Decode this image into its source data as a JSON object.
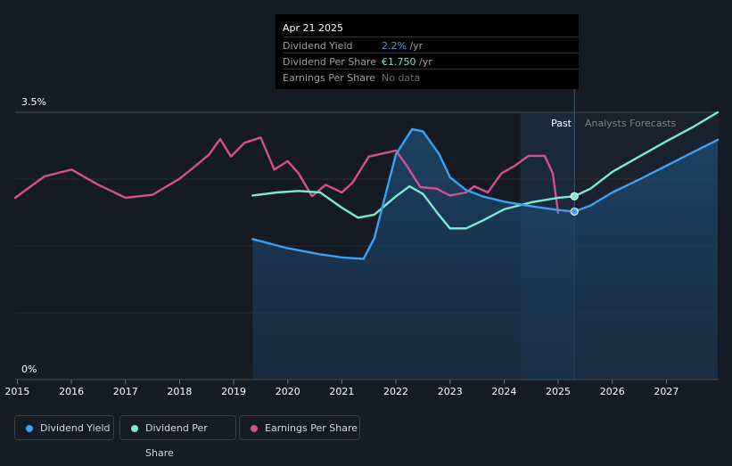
{
  "tooltip": {
    "date": "Apr 21 2025",
    "rows": [
      {
        "label": "Dividend Yield",
        "value": "2.2%",
        "unit": "/yr",
        "color": "#3ea0f0"
      },
      {
        "label": "Dividend Per Share",
        "value": "€1.750",
        "unit": "/yr",
        "color": "#7ee8d4"
      },
      {
        "label": "Earnings Per Share",
        "value": "No data",
        "unit": "",
        "color": "#6b7078"
      }
    ]
  },
  "legend": [
    {
      "label": "Dividend Yield",
      "color": "#3ea0f0"
    },
    {
      "label": "Dividend Per Share",
      "color": "#7ee8d4"
    },
    {
      "label": "Earnings Per Share",
      "color": "#d64f91"
    }
  ],
  "chart_data": {
    "type": "line",
    "title": "",
    "xlabel": "",
    "ylabel": "",
    "y_tick_labels": [
      "3.5%",
      "0%"
    ],
    "x_tick_labels": [
      "2015",
      "2016",
      "2017",
      "2018",
      "2019",
      "2020",
      "2021",
      "2022",
      "2023",
      "2024",
      "2025",
      "2026",
      "2027"
    ],
    "xlim": [
      2014.96,
      2027.95
    ],
    "ylim": [
      0,
      3.5
    ],
    "past_label": "Past",
    "forecast_label": "Analysts Forecasts",
    "past_band_start": 2024.3,
    "divider_x": 2025.3,
    "series": [
      {
        "name": "Dividend Yield",
        "color": "#3ea0f0",
        "area": true,
        "points": [
          [
            2019.35,
            1.84
          ],
          [
            2020.0,
            1.72
          ],
          [
            2020.6,
            1.64
          ],
          [
            2021.0,
            1.6
          ],
          [
            2021.4,
            1.58
          ],
          [
            2021.6,
            1.85
          ],
          [
            2022.0,
            2.95
          ],
          [
            2022.3,
            3.28
          ],
          [
            2022.5,
            3.25
          ],
          [
            2022.8,
            2.95
          ],
          [
            2023.0,
            2.65
          ],
          [
            2023.3,
            2.48
          ],
          [
            2023.6,
            2.4
          ],
          [
            2024.0,
            2.33
          ],
          [
            2024.5,
            2.27
          ],
          [
            2025.0,
            2.22
          ],
          [
            2025.3,
            2.2
          ],
          [
            2025.6,
            2.28
          ],
          [
            2026.0,
            2.45
          ],
          [
            2026.5,
            2.62
          ],
          [
            2027.0,
            2.8
          ],
          [
            2027.5,
            2.98
          ],
          [
            2027.95,
            3.14
          ]
        ]
      },
      {
        "name": "Dividend Per Share",
        "color": "#7ee8d4",
        "area": false,
        "points": [
          [
            2019.35,
            2.41
          ],
          [
            2019.8,
            2.45
          ],
          [
            2020.2,
            2.47
          ],
          [
            2020.6,
            2.45
          ],
          [
            2021.0,
            2.25
          ],
          [
            2021.3,
            2.12
          ],
          [
            2021.6,
            2.16
          ],
          [
            2022.0,
            2.4
          ],
          [
            2022.25,
            2.53
          ],
          [
            2022.5,
            2.43
          ],
          [
            2022.8,
            2.15
          ],
          [
            2023.0,
            1.98
          ],
          [
            2023.3,
            1.98
          ],
          [
            2023.6,
            2.08
          ],
          [
            2024.0,
            2.23
          ],
          [
            2024.5,
            2.32
          ],
          [
            2025.0,
            2.38
          ],
          [
            2025.3,
            2.4
          ],
          [
            2025.6,
            2.5
          ],
          [
            2026.0,
            2.72
          ],
          [
            2026.5,
            2.92
          ],
          [
            2027.0,
            3.12
          ],
          [
            2027.5,
            3.31
          ],
          [
            2027.95,
            3.5
          ]
        ]
      },
      {
        "name": "Earnings Per Share",
        "color": "#d64f91",
        "area": false,
        "points": [
          [
            2014.96,
            2.38
          ],
          [
            2015.5,
            2.66
          ],
          [
            2016.0,
            2.75
          ],
          [
            2016.5,
            2.55
          ],
          [
            2017.0,
            2.38
          ],
          [
            2017.5,
            2.42
          ],
          [
            2018.0,
            2.63
          ],
          [
            2018.3,
            2.8
          ],
          [
            2018.55,
            2.95
          ],
          [
            2018.75,
            3.15
          ],
          [
            2018.95,
            2.92
          ],
          [
            2019.2,
            3.1
          ],
          [
            2019.5,
            3.17
          ],
          [
            2019.75,
            2.75
          ],
          [
            2020.0,
            2.86
          ],
          [
            2020.2,
            2.7
          ],
          [
            2020.45,
            2.4
          ],
          [
            2020.7,
            2.55
          ],
          [
            2021.0,
            2.45
          ],
          [
            2021.2,
            2.58
          ],
          [
            2021.5,
            2.92
          ],
          [
            2021.7,
            2.95
          ],
          [
            2022.0,
            3.0
          ],
          [
            2022.2,
            2.8
          ],
          [
            2022.45,
            2.52
          ],
          [
            2022.75,
            2.5
          ],
          [
            2023.0,
            2.41
          ],
          [
            2023.3,
            2.45
          ],
          [
            2023.45,
            2.53
          ],
          [
            2023.7,
            2.45
          ],
          [
            2023.95,
            2.7
          ],
          [
            2024.2,
            2.8
          ],
          [
            2024.45,
            2.93
          ],
          [
            2024.75,
            2.93
          ],
          [
            2024.9,
            2.7
          ],
          [
            2025.0,
            2.18
          ]
        ]
      }
    ],
    "markers": [
      {
        "series": "Dividend Per Share",
        "x": 2025.3,
        "y": 2.4
      },
      {
        "series": "Dividend Yield",
        "x": 2025.3,
        "y": 2.2
      }
    ]
  }
}
